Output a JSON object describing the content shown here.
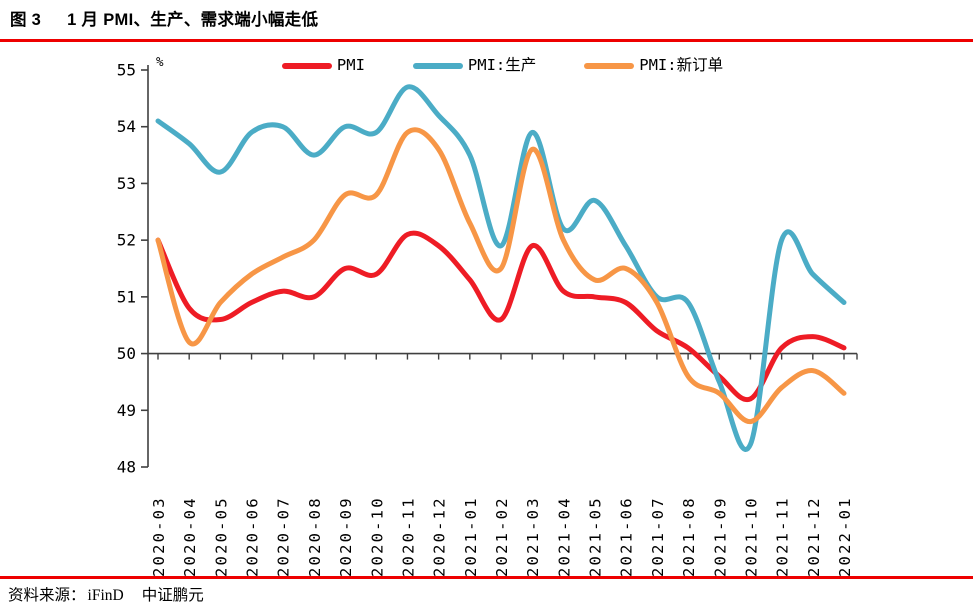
{
  "page": {
    "title_figure": "图 3",
    "title_text": "1 月 PMI、生产、需求端小幅走低",
    "source_label": "资料来源：",
    "source_1": "iFinD",
    "source_2": "中证鹏元",
    "accent_rule_color": "#EE0000",
    "axis_color": "#404040",
    "text_color": "#000000"
  },
  "chart_data": {
    "type": "line",
    "title": "",
    "unit_label": "%",
    "xlabel": "",
    "ylabel": "%",
    "ylim": [
      48,
      55
    ],
    "ytick_step": 1,
    "baseline": 50,
    "grid": false,
    "smooth": true,
    "legend_position": "top-center",
    "x": [
      "2020-03",
      "2020-04",
      "2020-05",
      "2020-06",
      "2020-07",
      "2020-08",
      "2020-09",
      "2020-10",
      "2020-11",
      "2020-12",
      "2021-01",
      "2021-02",
      "2021-03",
      "2021-04",
      "2021-05",
      "2021-06",
      "2021-07",
      "2021-08",
      "2021-09",
      "2021-10",
      "2021-11",
      "2021-12",
      "2022-01"
    ],
    "series": [
      {
        "name": "PMI",
        "color": "#EE1C25",
        "values": [
          52.0,
          50.8,
          50.6,
          50.9,
          51.1,
          51.0,
          51.5,
          51.4,
          52.1,
          51.9,
          51.3,
          50.6,
          51.9,
          51.1,
          51.0,
          50.9,
          50.4,
          50.1,
          49.6,
          49.2,
          50.1,
          50.3,
          50.1
        ]
      },
      {
        "name": "PMI:生产",
        "color": "#4BACC6",
        "values": [
          54.1,
          53.7,
          53.2,
          53.9,
          54.0,
          53.5,
          54.0,
          53.9,
          54.7,
          54.2,
          53.5,
          51.9,
          53.9,
          52.2,
          52.7,
          51.9,
          51.0,
          50.9,
          49.5,
          48.4,
          52.0,
          51.4,
          50.9
        ]
      },
      {
        "name": "PMI:新订单",
        "color": "#F79646",
        "values": [
          52.0,
          50.2,
          50.9,
          51.4,
          51.7,
          52.0,
          52.8,
          52.8,
          53.9,
          53.6,
          52.3,
          51.5,
          53.6,
          52.0,
          51.3,
          51.5,
          50.9,
          49.6,
          49.3,
          48.8,
          49.4,
          49.7,
          49.3
        ]
      }
    ]
  }
}
